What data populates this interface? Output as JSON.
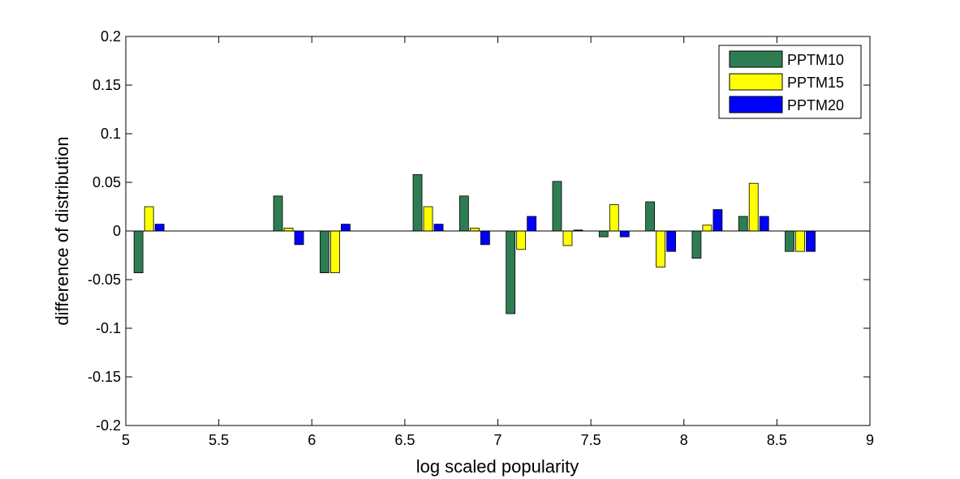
{
  "chart_data": {
    "type": "bar",
    "xlabel": "log scaled popularity",
    "ylabel": "difference of distribution",
    "xlim": [
      5,
      9
    ],
    "ylim": [
      -0.2,
      0.2
    ],
    "x_ticks": [
      "5",
      "5.5",
      "6",
      "6.5",
      "7",
      "7.5",
      "8",
      "8.5",
      "9"
    ],
    "y_ticks": [
      "-0.2",
      "-0.15",
      "-0.1",
      "-0.05",
      "0",
      "0.05",
      "0.1",
      "0.15",
      "0.2"
    ],
    "grid": false,
    "legend_position": "top-right",
    "x": [
      5.125,
      5.875,
      6.125,
      6.625,
      6.875,
      7.125,
      7.375,
      7.625,
      7.875,
      8.125,
      8.375,
      8.625
    ],
    "series": [
      {
        "name": "PPTM10",
        "color": "#2e7d52",
        "values": [
          -0.043,
          0.036,
          -0.043,
          0.058,
          0.036,
          -0.085,
          0.051,
          -0.006,
          0.03,
          -0.028,
          0.015,
          -0.021
        ]
      },
      {
        "name": "PPTM15",
        "color": "#ffff00",
        "values": [
          0.025,
          0.003,
          -0.043,
          0.025,
          0.003,
          -0.019,
          -0.015,
          0.027,
          -0.037,
          0.006,
          0.049,
          -0.021
        ]
      },
      {
        "name": "PPTM20",
        "color": "#0000ff",
        "values": [
          0.007,
          -0.014,
          0.007,
          0.007,
          -0.014,
          0.015,
          0.001,
          -0.006,
          -0.021,
          0.022,
          0.015,
          -0.021
        ]
      }
    ]
  }
}
